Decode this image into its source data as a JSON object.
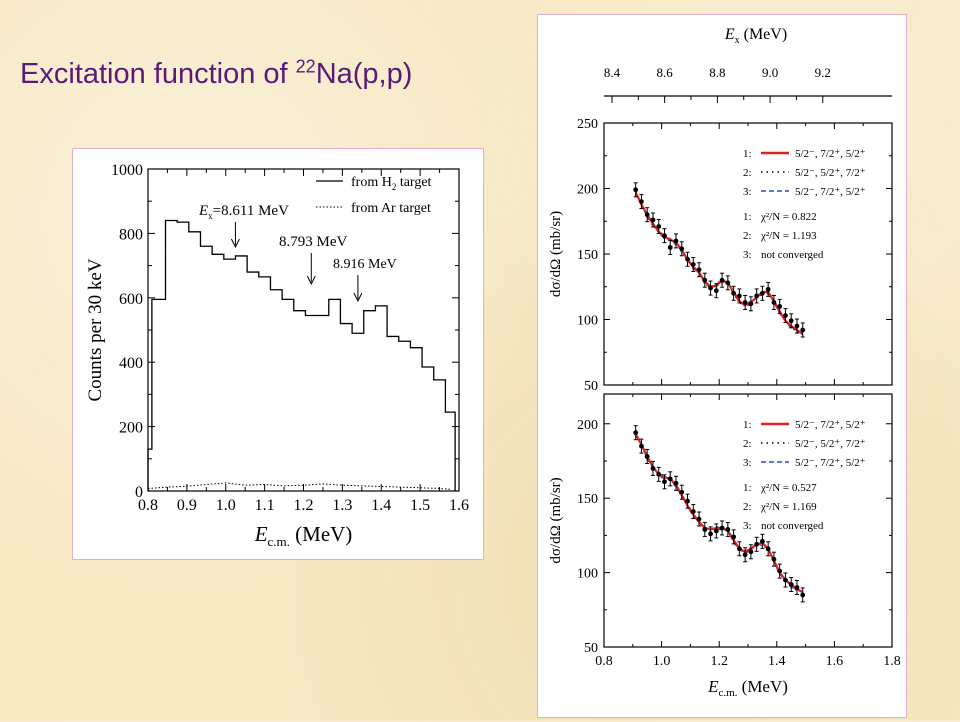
{
  "slide": {
    "title_main": "Excitation function of ",
    "title_sup": "22",
    "title_end": "Na(p,p)"
  },
  "chart_data": [
    {
      "type": "line",
      "xlabel_main": "E",
      "xlabel_sub": "c.m.",
      "xlabel_unit": " (MeV)",
      "ylabel": "Counts per 30 keV",
      "xlim": [
        0.8,
        1.6
      ],
      "ylim": [
        0,
        1000
      ],
      "xticks": [
        "0.8",
        "0.9",
        "1.0",
        "1.1",
        "1.2",
        "1.3",
        "1.4",
        "1.5",
        "1.6"
      ],
      "yticks": [
        "0",
        "200",
        "400",
        "600",
        "800",
        "1000"
      ],
      "legend_position": "top-right",
      "series": [
        {
          "name_main": "from H",
          "name_sub": "2",
          "name_end": " target",
          "style": "solid-step",
          "edges": [
            0.8,
            0.81,
            0.845,
            0.875,
            0.905,
            0.935,
            0.965,
            0.995,
            1.025,
            1.055,
            1.085,
            1.115,
            1.145,
            1.175,
            1.205,
            1.235,
            1.265,
            1.295,
            1.325,
            1.355,
            1.385,
            1.415,
            1.445,
            1.475,
            1.505,
            1.535,
            1.565,
            1.59
          ],
          "values": [
            130,
            595,
            840,
            835,
            805,
            760,
            735,
            720,
            730,
            680,
            665,
            625,
            595,
            560,
            545,
            545,
            595,
            520,
            490,
            560,
            575,
            480,
            465,
            445,
            385,
            345,
            245,
            0
          ]
        },
        {
          "name": "from Ar target",
          "style": "dotted",
          "x": [
            0.8,
            0.85,
            0.9,
            0.95,
            1.0,
            1.05,
            1.1,
            1.15,
            1.2,
            1.25,
            1.3,
            1.35,
            1.4,
            1.45,
            1.5,
            1.55,
            1.58
          ],
          "values": [
            8,
            12,
            15,
            20,
            25,
            18,
            20,
            16,
            18,
            22,
            18,
            16,
            14,
            12,
            10,
            8,
            5
          ]
        }
      ],
      "annotations": [
        {
          "text_main": "E",
          "text_sub": "x",
          "text_end": "=8.611 MeV",
          "x": 1.03
        },
        {
          "text": "8.793 MeV",
          "x": 1.22
        },
        {
          "text": "8.916 MeV",
          "x": 1.34
        }
      ]
    },
    {
      "type": "scatter",
      "top_axis_label_main": "E",
      "top_axis_label_sub": "x",
      "top_axis_unit": " (MeV)",
      "top_ticks": [
        "8.4",
        "8.6",
        "8.8",
        "9.0",
        "9.2"
      ],
      "ylabel": "dσ/dΩ (mb/sr)",
      "xlim": [
        0.8,
        1.8
      ],
      "ylim": [
        50,
        250
      ],
      "yticks": [
        "50",
        "100",
        "150",
        "200",
        "250"
      ],
      "legend_position": "top-right",
      "legend": [
        {
          "index": "1:",
          "style": "solid",
          "color": "#e32020",
          "label": "5/2⁻, 7/2⁺, 5/2⁺"
        },
        {
          "index": "2:",
          "style": "dotted",
          "color": "#000000",
          "label": "5/2⁻, 5/2⁺, 7/2⁺"
        },
        {
          "index": "3:",
          "style": "dashed",
          "color": "#2a45d8",
          "label": "5/2⁻, 7/2⁺, 5/2⁺"
        }
      ],
      "fit_notes": [
        {
          "index": "1:",
          "text": "χ²/N = 0.822"
        },
        {
          "index": "2:",
          "text": "χ²/N = 1.193"
        },
        {
          "index": "3:",
          "text": "not converged"
        }
      ],
      "x": [
        0.91,
        0.93,
        0.95,
        0.97,
        0.99,
        1.01,
        1.03,
        1.05,
        1.07,
        1.09,
        1.11,
        1.13,
        1.15,
        1.17,
        1.19,
        1.21,
        1.23,
        1.25,
        1.27,
        1.29,
        1.31,
        1.33,
        1.35,
        1.37,
        1.39,
        1.41,
        1.43,
        1.45,
        1.47,
        1.49
      ],
      "values": [
        199,
        190,
        180,
        176,
        171,
        164,
        155,
        160,
        154,
        146,
        142,
        138,
        130,
        124,
        122,
        130,
        128,
        120,
        118,
        113,
        112,
        118,
        120,
        123,
        113,
        110,
        103,
        99,
        95,
        92
      ],
      "fit": [
        197,
        188,
        180,
        173,
        167,
        163,
        161,
        159,
        153,
        146,
        140,
        136,
        129,
        125,
        126,
        130,
        128,
        121,
        114,
        111,
        113,
        117,
        121,
        121,
        114,
        106,
        99,
        95,
        92,
        89
      ]
    },
    {
      "type": "scatter",
      "xlabel_main": "E",
      "xlabel_sub": "c.m.",
      "xlabel_unit": " (MeV)",
      "ylabel": "dσ/dΩ (mb/sr)",
      "xlim": [
        0.8,
        1.8
      ],
      "ylim": [
        50,
        220
      ],
      "xticks": [
        "0.8",
        "1.0",
        "1.2",
        "1.4",
        "1.6",
        "1.8"
      ],
      "yticks": [
        "50",
        "100",
        "150",
        "200"
      ],
      "legend_position": "top-right",
      "legend": [
        {
          "index": "1:",
          "style": "solid",
          "color": "#e32020",
          "label": "5/2⁻, 7/2⁺, 5/2⁺"
        },
        {
          "index": "2:",
          "style": "dotted",
          "color": "#000000",
          "label": "5/2⁻, 5/2⁺, 7/2⁺"
        },
        {
          "index": "3:",
          "style": "dashed",
          "color": "#2a45d8",
          "label": "5/2⁻, 7/2⁺, 5/2⁺"
        }
      ],
      "fit_notes": [
        {
          "index": "1:",
          "text": "χ²/N = 0.527"
        },
        {
          "index": "2:",
          "text": "χ²/N = 1.169"
        },
        {
          "index": "3:",
          "text": "not converged"
        }
      ],
      "x": [
        0.91,
        0.93,
        0.95,
        0.97,
        0.99,
        1.01,
        1.03,
        1.05,
        1.07,
        1.09,
        1.11,
        1.13,
        1.15,
        1.17,
        1.19,
        1.21,
        1.23,
        1.25,
        1.27,
        1.29,
        1.31,
        1.33,
        1.35,
        1.37,
        1.39,
        1.41,
        1.43,
        1.45,
        1.47,
        1.49
      ],
      "values": [
        194,
        185,
        178,
        170,
        166,
        161,
        163,
        160,
        154,
        148,
        141,
        136,
        129,
        126,
        128,
        130,
        129,
        124,
        116,
        112,
        114,
        119,
        121,
        116,
        109,
        101,
        95,
        92,
        90,
        85
      ],
      "fit": [
        193,
        186,
        178,
        171,
        166,
        164,
        163,
        159,
        152,
        145,
        139,
        134,
        130,
        129,
        130,
        130,
        128,
        122,
        116,
        114,
        116,
        119,
        120,
        116,
        108,
        100,
        95,
        92,
        89,
        87
      ]
    }
  ]
}
